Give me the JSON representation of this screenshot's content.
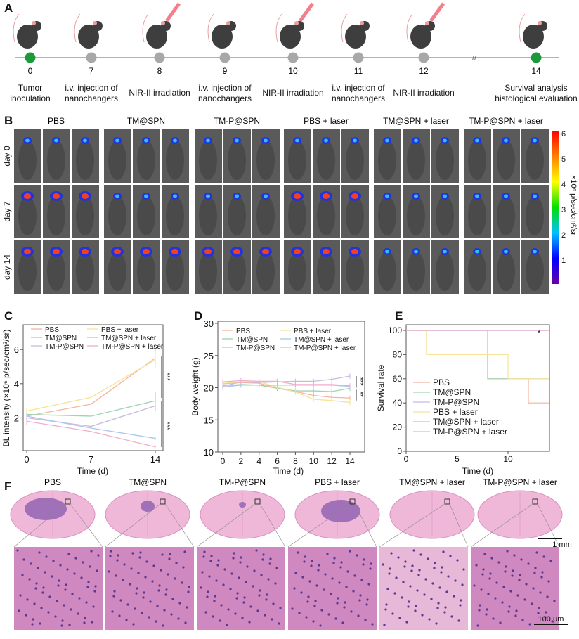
{
  "panels": {
    "a": "A",
    "b": "B",
    "c": "C",
    "d": "D",
    "e": "E",
    "f": "F"
  },
  "timeline": {
    "points": [
      {
        "day": "0",
        "text1": "Tumor",
        "text2": "inoculation",
        "color": "#1a9a3a",
        "laser": false
      },
      {
        "day": "7",
        "text1": "i.v. injection of",
        "text2": "nanochangers",
        "color": "#a8a8a8",
        "laser": false
      },
      {
        "day": "8",
        "text1": "NIR-II irradiation",
        "text2": "",
        "color": "#a8a8a8",
        "laser": true
      },
      {
        "day": "9",
        "text1": "i.v. injection of",
        "text2": "nanochangers",
        "color": "#a8a8a8",
        "laser": false
      },
      {
        "day": "10",
        "text1": "NIR-II irradiation",
        "text2": "",
        "color": "#a8a8a8",
        "laser": true
      },
      {
        "day": "11",
        "text1": "i.v. injection of",
        "text2": "nanochangers",
        "color": "#a8a8a8",
        "laser": false
      },
      {
        "day": "12",
        "text1": "NIR-II irradiation",
        "text2": "",
        "color": "#a8a8a8",
        "laser": true
      },
      {
        "day": "14",
        "text1": "Survival analysis",
        "text2": "histological evaluation",
        "color": "#1a9a3a",
        "laser": false
      }
    ],
    "break_mark": "//"
  },
  "groups": [
    "PBS",
    "TM@SPN",
    "TM-P@SPN",
    "PBS + laser",
    "TM@SPN + laser",
    "TM-P@SPN + laser"
  ],
  "imaging": {
    "rows": [
      "day 0",
      "day 7",
      "day 14"
    ],
    "colorbar": {
      "ticks": [
        "6",
        "5",
        "4",
        "3",
        "2",
        "1"
      ],
      "label": "×10⁶ p/sec/cm²/sr"
    }
  },
  "series_colors": [
    "#f4b59c",
    "#9fd3b2",
    "#c9b9de",
    "#f6e39a",
    "#a9c6ee",
    "#efadcd"
  ],
  "chart_data": [
    {
      "type": "line",
      "panel": "C",
      "xlabel": "Time (d)",
      "ylabel": "BL intensity (×10⁶ p/sec/cm²/sr)",
      "x": [
        0,
        7,
        14
      ],
      "xticks": [
        "0",
        "7",
        "14"
      ],
      "yticks": [
        "2",
        "4",
        "6"
      ],
      "ylim": [
        0,
        7.4
      ],
      "legend": "top",
      "series": [
        {
          "name": "PBS",
          "values": [
            2.1,
            2.8,
            5.5
          ],
          "err": [
            0.3,
            0.6,
            0.6
          ]
        },
        {
          "name": "TM@SPN",
          "values": [
            2.2,
            2.1,
            3.0
          ],
          "err": [
            0.2,
            0.6,
            0.5
          ]
        },
        {
          "name": "TM-P@SPN",
          "values": [
            2.0,
            1.5,
            2.7
          ],
          "err": [
            0.3,
            0.3,
            0.3
          ]
        },
        {
          "name": "PBS + laser",
          "values": [
            2.4,
            3.2,
            5.4
          ],
          "err": [
            0.2,
            0.5,
            0.5
          ]
        },
        {
          "name": "TM@SPN + laser",
          "values": [
            2.1,
            1.4,
            0.8
          ],
          "err": [
            0.2,
            0.4,
            0.1
          ]
        },
        {
          "name": "TM-P@SPN + laser",
          "values": [
            1.8,
            1.2,
            0.3
          ],
          "err": [
            0.2,
            0.3,
            0.1
          ]
        }
      ],
      "annotations": [
        "***",
        "***"
      ]
    },
    {
      "type": "line",
      "panel": "D",
      "xlabel": "Time (d)",
      "ylabel": "Body weight (g)",
      "x": [
        0,
        2,
        4,
        6,
        8,
        10,
        12,
        14
      ],
      "xticks": [
        "0",
        "2",
        "4",
        "6",
        "8",
        "10",
        "12",
        "14"
      ],
      "yticks": [
        "10",
        "15",
        "20",
        "25",
        "30"
      ],
      "ylim": [
        10,
        30
      ],
      "legend": "top",
      "series": [
        {
          "name": "PBS",
          "values": [
            20.6,
            20.8,
            20.7,
            19.9,
            19.4,
            18.8,
            18.5,
            18.4
          ]
        },
        {
          "name": "TM@SPN",
          "values": [
            20.3,
            20.5,
            20.4,
            19.9,
            19.5,
            19.5,
            19.4,
            19.9
          ]
        },
        {
          "name": "TM-P@SPN",
          "values": [
            20.2,
            20.9,
            20.8,
            20.9,
            21.0,
            21.0,
            21.3,
            21.8
          ]
        },
        {
          "name": "PBS + laser",
          "values": [
            20.7,
            20.9,
            20.9,
            20.1,
            19.3,
            18.2,
            18.0,
            17.7
          ]
        },
        {
          "name": "TM@SPN + laser",
          "values": [
            20.1,
            20.4,
            20.4,
            20.4,
            20.4,
            20.4,
            20.4,
            20.2
          ]
        },
        {
          "name": "TM-P@SPN + laser",
          "values": [
            20.9,
            21.1,
            21.0,
            21.0,
            20.5,
            20.5,
            20.5,
            20.3
          ]
        }
      ],
      "annotations": [
        "***",
        "**"
      ]
    },
    {
      "type": "line",
      "panel": "E",
      "xlabel": "Time (d)",
      "ylabel": "Survival rate",
      "xticks": [
        "0",
        "5",
        "10"
      ],
      "xlim": [
        0,
        14
      ],
      "yticks": [
        "0",
        "20",
        "40",
        "60",
        "80",
        "100"
      ],
      "ylim": [
        0,
        100
      ],
      "legend": "bottom-left",
      "step": true,
      "series": [
        {
          "name": "PBS",
          "x": [
            0,
            2,
            8,
            12,
            14
          ],
          "values": [
            100,
            80,
            60,
            40,
            40
          ]
        },
        {
          "name": "TM@SPN",
          "x": [
            0,
            8,
            14
          ],
          "values": [
            100,
            60,
            60
          ]
        },
        {
          "name": "TM-P@SPN",
          "x": [
            0,
            14
          ],
          "values": [
            100,
            100
          ]
        },
        {
          "name": "PBS + laser",
          "x": [
            0,
            2,
            10,
            14
          ],
          "values": [
            100,
            80,
            60,
            60
          ]
        },
        {
          "name": "TM@SPN + laser",
          "x": [
            0,
            14
          ],
          "values": [
            100,
            100
          ]
        },
        {
          "name": "TM-P@SPN + laser",
          "x": [
            0,
            14
          ],
          "values": [
            100,
            100
          ]
        }
      ],
      "annotations": [
        "*"
      ]
    }
  ],
  "histology": {
    "scale_top": "1 mm",
    "scale_bottom": "100 μm"
  }
}
